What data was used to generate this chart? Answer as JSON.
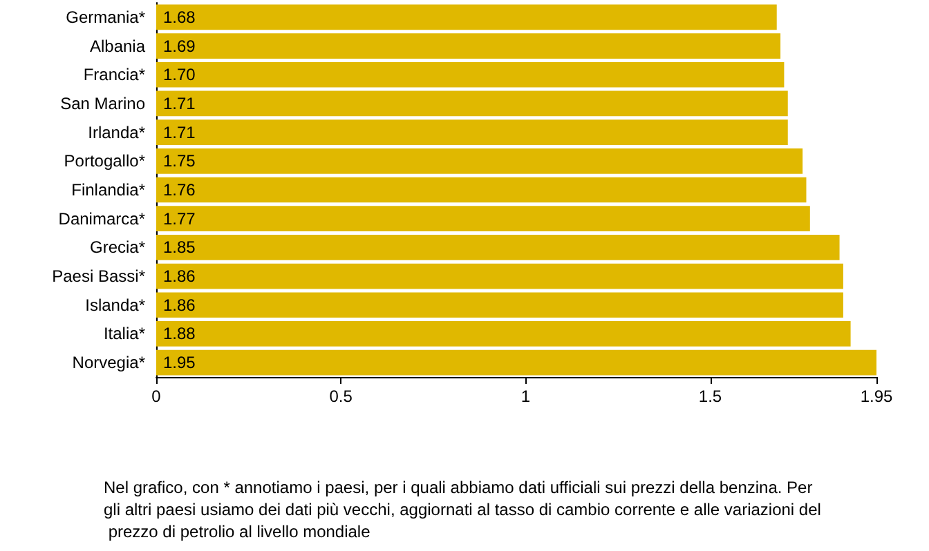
{
  "chart_data": {
    "type": "bar",
    "orientation": "horizontal",
    "categories": [
      "Germania*",
      "Albania",
      "Francia*",
      "San Marino",
      "Irlanda*",
      "Portogallo*",
      "Finlandia*",
      "Danimarca*",
      "Grecia*",
      "Paesi Bassi*",
      "Islanda*",
      "Italia*",
      "Norvegia*"
    ],
    "values": [
      1.68,
      1.69,
      1.7,
      1.71,
      1.71,
      1.75,
      1.76,
      1.77,
      1.85,
      1.86,
      1.86,
      1.88,
      1.95
    ],
    "value_labels": [
      "1.68",
      "1.69",
      "1.70",
      "1.71",
      "1.71",
      "1.75",
      "1.76",
      "1.77",
      "1.85",
      "1.86",
      "1.86",
      "1.88",
      "1.95"
    ],
    "color": "#e0b800",
    "xlim": [
      0,
      1.95
    ],
    "xticks": [
      0,
      0.5,
      1,
      1.5,
      1.95
    ],
    "annotations": [
      "Nel grafico, con * annotiamo i paesi, per i quali abbiamo dati ufficiali sui prezzi della benzina. Per gli altri paesi usiamo dei dati più vecchi, aggiornati al tasso di cambio corrente e alle variazioni del prezzo di petrolio al livello mondiale"
    ]
  }
}
